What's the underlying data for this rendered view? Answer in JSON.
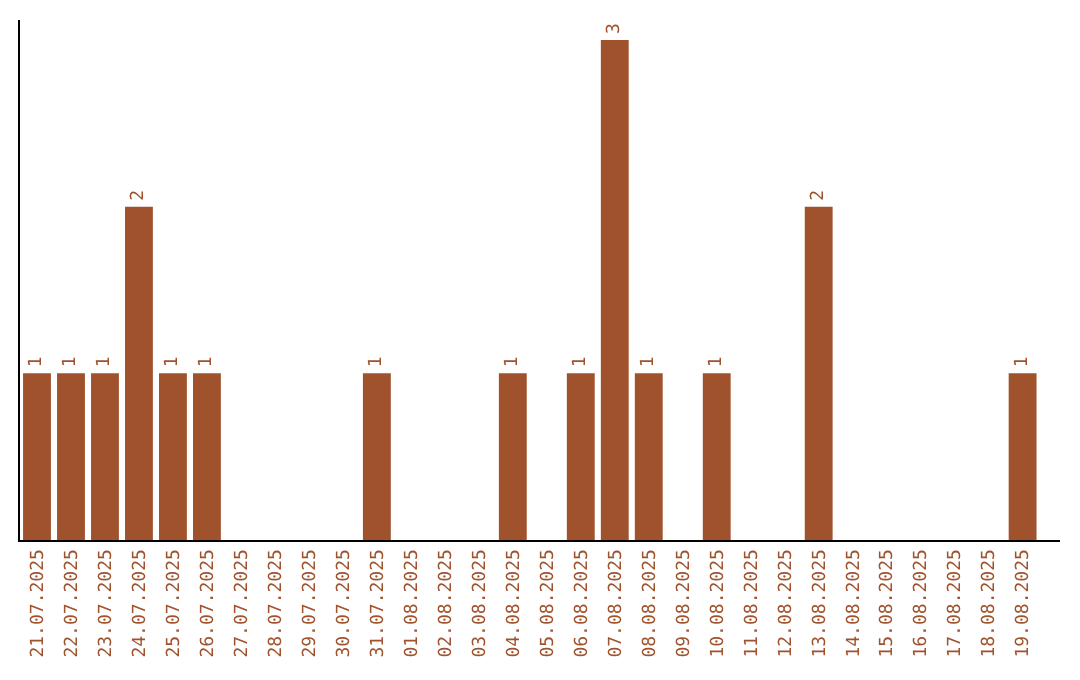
{
  "chart_data": {
    "type": "bar",
    "categories": [
      "21.07.2025",
      "22.07.2025",
      "23.07.2025",
      "24.07.2025",
      "25.07.2025",
      "26.07.2025",
      "27.07.2025",
      "28.07.2025",
      "29.07.2025",
      "30.07.2025",
      "31.07.2025",
      "01.08.2025",
      "02.08.2025",
      "03.08.2025",
      "04.08.2025",
      "05.08.2025",
      "06.08.2025",
      "07.08.2025",
      "08.08.2025",
      "09.08.2025",
      "10.08.2025",
      "11.08.2025",
      "12.08.2025",
      "13.08.2025",
      "14.08.2025",
      "15.08.2025",
      "16.08.2025",
      "17.08.2025",
      "18.08.2025",
      "19.08.2025"
    ],
    "values": [
      1,
      1,
      1,
      2,
      1,
      1,
      0,
      0,
      0,
      0,
      1,
      0,
      0,
      0,
      1,
      0,
      1,
      3,
      1,
      0,
      1,
      0,
      0,
      2,
      0,
      0,
      0,
      0,
      0,
      1
    ],
    "value_labels": [
      "1",
      "1",
      "1",
      "2",
      "1",
      "1",
      null,
      null,
      null,
      null,
      "1",
      null,
      null,
      null,
      "1",
      null,
      "1",
      "3",
      "1",
      null,
      "1",
      null,
      null,
      "2",
      null,
      null,
      null,
      null,
      null,
      "1"
    ],
    "color": "#a0522d"
  }
}
